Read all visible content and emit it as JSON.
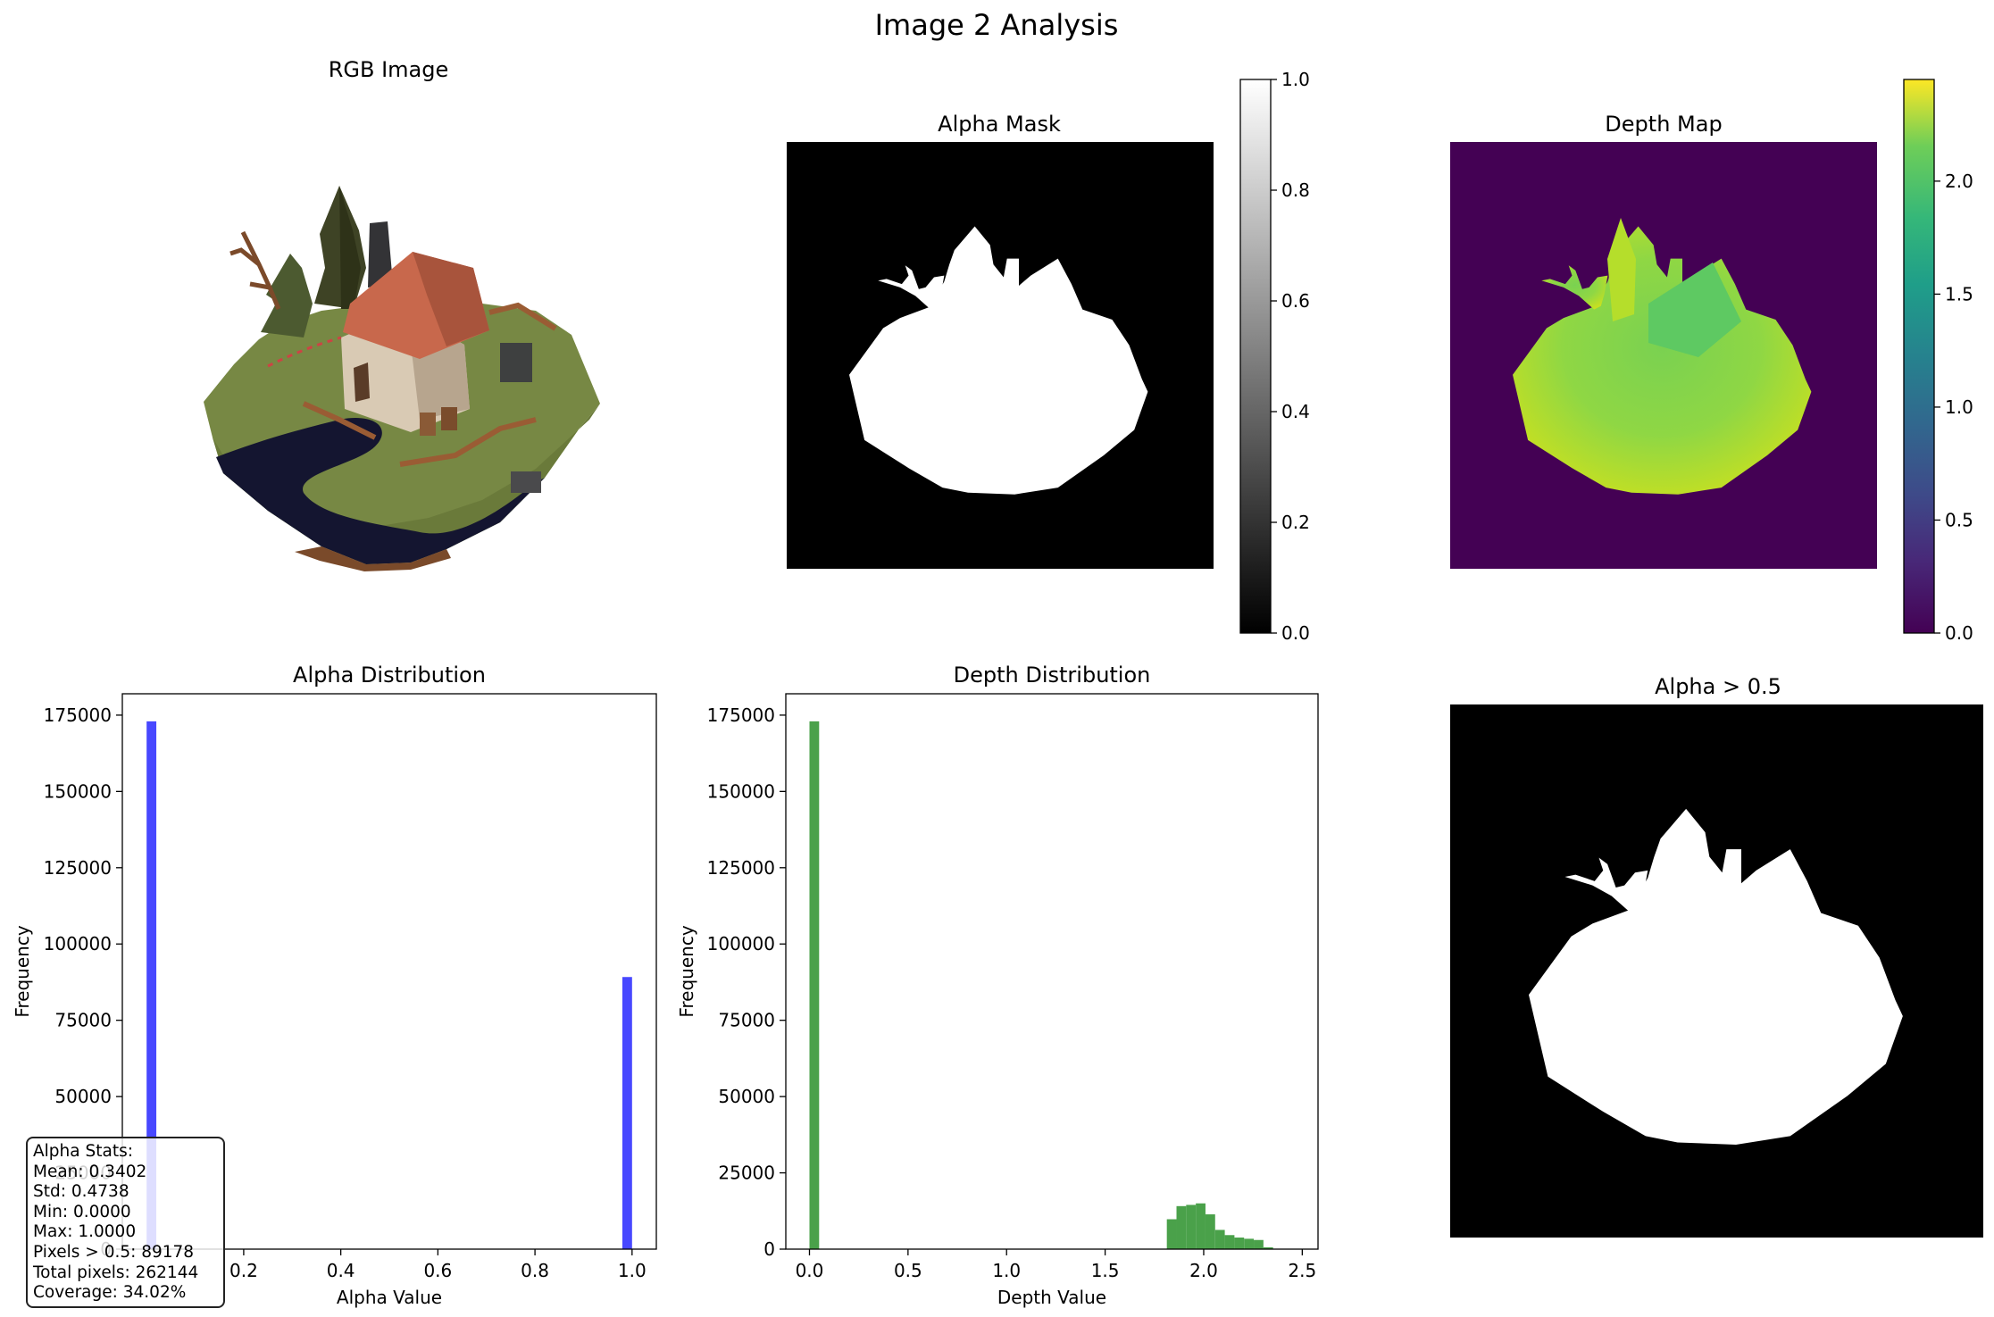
{
  "figure": {
    "title": "Image 2 Analysis",
    "colors": {
      "mask_white": "#ffffff",
      "mask_black": "#000000",
      "depth_background": "#440154",
      "alpha_hist": "#4848ff",
      "depth_hist": "#4aa14a"
    },
    "panels": {
      "rgb": {
        "title": "RGB Image"
      },
      "alpha_mask": {
        "title": "Alpha Mask"
      },
      "depth_map": {
        "title": "Depth Map"
      },
      "alpha_threshold": {
        "title": "Alpha > 0.5"
      }
    }
  },
  "chart_data": [
    {
      "type": "heatmap",
      "name": "alpha_mask",
      "title": "Alpha Mask",
      "colormap": "gray",
      "colorbar": {
        "range": [
          0.0,
          1.0
        ],
        "ticks": [
          "0.0",
          "0.2",
          "0.4",
          "0.6",
          "0.8",
          "1.0"
        ]
      }
    },
    {
      "type": "heatmap",
      "name": "depth_map",
      "title": "Depth Map",
      "colormap": "viridis",
      "colorbar": {
        "range": [
          0.0,
          2.45
        ],
        "ticks": [
          "0.0",
          "0.5",
          "1.0",
          "1.5",
          "2.0"
        ]
      }
    },
    {
      "type": "bar",
      "name": "alpha_distribution",
      "title": "Alpha Distribution",
      "xlabel": "Alpha Value",
      "ylabel": "Frequency",
      "xlim": [
        -0.05,
        1.05
      ],
      "ylim": [
        0,
        182000
      ],
      "xticks": [
        0.2,
        0.4,
        0.6,
        0.8,
        1.0
      ],
      "xtick_labels": [
        "0.2",
        "0.4",
        "0.6",
        "0.8",
        "1.0"
      ],
      "yticks": [
        0,
        25000,
        50000,
        75000,
        100000,
        125000,
        150000,
        175000
      ],
      "ytick_labels": [
        "0",
        "25000",
        "50000",
        "75000",
        "100000",
        "125000",
        "150000",
        "175000"
      ],
      "bin_width": 0.02,
      "bins": [
        {
          "x0": 0.0,
          "x1": 0.02,
          "count": 172966
        },
        {
          "x0": 0.98,
          "x1": 1.0,
          "count": 89178
        }
      ],
      "stats": {
        "lines": [
          "Alpha Stats:",
          "Mean: 0.3402",
          "Std: 0.4738",
          "Min: 0.0000",
          "Max: 1.0000",
          "Pixels > 0.5: 89178",
          "Total pixels: 262144",
          "Coverage: 34.02%"
        ]
      }
    },
    {
      "type": "bar",
      "name": "depth_distribution",
      "title": "Depth Distribution",
      "xlabel": "Depth Value",
      "ylabel": "Frequency",
      "xlim": [
        -0.12,
        2.58
      ],
      "ylim": [
        0,
        182000
      ],
      "xticks": [
        0.0,
        0.5,
        1.0,
        1.5,
        2.0,
        2.5
      ],
      "xtick_labels": [
        "0.0",
        "0.5",
        "1.0",
        "1.5",
        "2.0",
        "2.5"
      ],
      "yticks": [
        0,
        25000,
        50000,
        75000,
        100000,
        125000,
        150000,
        175000
      ],
      "ytick_labels": [
        "0",
        "25000",
        "50000",
        "75000",
        "100000",
        "125000",
        "150000",
        "175000"
      ],
      "bins": [
        {
          "x0": 0.0,
          "x1": 0.049,
          "count": 172966
        },
        {
          "x0": 1.813,
          "x1": 1.862,
          "count": 9800
        },
        {
          "x0": 1.862,
          "x1": 1.911,
          "count": 14100
        },
        {
          "x0": 1.911,
          "x1": 1.96,
          "count": 14500
        },
        {
          "x0": 1.96,
          "x1": 2.009,
          "count": 15000
        },
        {
          "x0": 2.009,
          "x1": 2.058,
          "count": 11400
        },
        {
          "x0": 2.058,
          "x1": 2.107,
          "count": 6300
        },
        {
          "x0": 2.107,
          "x1": 2.156,
          "count": 4600
        },
        {
          "x0": 2.156,
          "x1": 2.205,
          "count": 3800
        },
        {
          "x0": 2.205,
          "x1": 2.254,
          "count": 3400
        },
        {
          "x0": 2.254,
          "x1": 2.303,
          "count": 3000
        },
        {
          "x0": 2.303,
          "x1": 2.352,
          "count": 600
        }
      ]
    }
  ]
}
